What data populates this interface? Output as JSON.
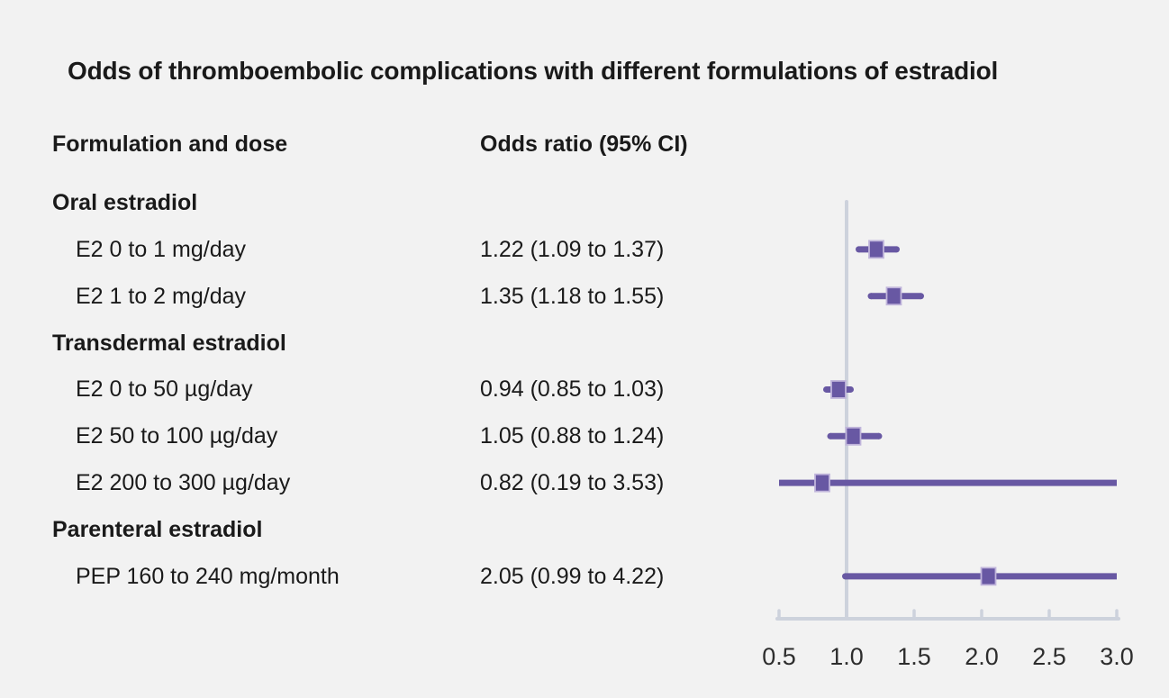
{
  "title": "Odds of thromboembolic complications with different formulations of estradiol",
  "columns": {
    "formulation": "Formulation and dose",
    "odds_ratio": "Odds ratio (95% CI)"
  },
  "colors": {
    "background": "#f2f2f2",
    "text": "#1a1a1a",
    "marker_purple": "#6858a3",
    "marker_edge": "#c0b5db",
    "axis_gray": "#cdd2dc",
    "tick_label": "#2d2d2d"
  },
  "chart_data": {
    "type": "forest",
    "title": "Odds of thromboembolic complications with different formulations of estradiol",
    "xlabel": "",
    "ylabel": "",
    "xlim": [
      0.5,
      3.0
    ],
    "x_tick_labels": [
      "0.5",
      "1.0",
      "1.5",
      "2.0",
      "2.5",
      "3.0"
    ],
    "x_tick_values": [
      0.5,
      1.0,
      1.5,
      2.0,
      2.5,
      3.0
    ],
    "reference_line": 1.0,
    "grid": false,
    "legend": false,
    "groups": [
      {
        "heading": "Oral estradiol",
        "rows": [
          {
            "label": "E2 0 to 1 mg/day",
            "display": "1.22 (1.09 to 1.37)",
            "or": 1.22,
            "ci_low": 1.09,
            "ci_high": 1.37
          },
          {
            "label": "E2 1 to 2 mg/day",
            "display": "1.35 (1.18 to 1.55)",
            "or": 1.35,
            "ci_low": 1.18,
            "ci_high": 1.55
          }
        ]
      },
      {
        "heading": "Transdermal estradiol",
        "rows": [
          {
            "label": "E2 0 to 50 µg/day",
            "display": "0.94 (0.85 to 1.03)",
            "or": 0.94,
            "ci_low": 0.85,
            "ci_high": 1.03
          },
          {
            "label": "E2 50 to 100 µg/day",
            "display": "1.05 (0.88 to 1.24)",
            "or": 1.05,
            "ci_low": 0.88,
            "ci_high": 1.24
          },
          {
            "label": "E2 200 to 300 µg/day",
            "display": "0.82 (0.19 to 3.53)",
            "or": 0.82,
            "ci_low": 0.19,
            "ci_high": 3.53
          }
        ]
      },
      {
        "heading": "Parenteral estradiol",
        "rows": [
          {
            "label": "PEP 160 to 240 mg/month",
            "display": "2.05 (0.99 to 4.22)",
            "or": 2.05,
            "ci_low": 0.99,
            "ci_high": 4.22
          }
        ]
      }
    ]
  }
}
